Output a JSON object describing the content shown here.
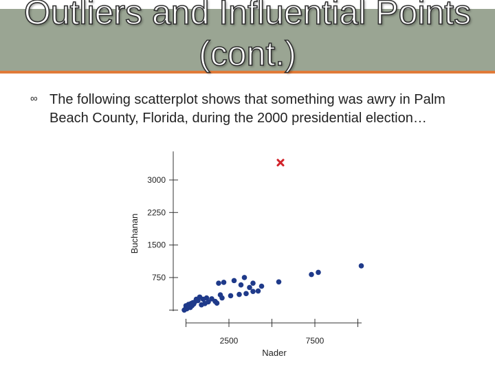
{
  "slide": {
    "title": "Outliers and Influential Points (cont.)",
    "bullet_icon": "swirl-bullet-icon",
    "bullet_text": "The following scatterplot shows that something was awry in Palm Beach County, Florida, during the 2000 presidential election…"
  },
  "colors": {
    "title_band": "#9aa593",
    "title_underline": "#e07b39",
    "points": "#1f3a8a",
    "outlier": "#d2232a"
  },
  "chart_data": {
    "type": "scatter",
    "title": "",
    "xlabel": "Nader",
    "ylabel": "Buchanan",
    "xlim": [
      -100,
      9900
    ],
    "ylim": [
      -200,
      3500
    ],
    "x_ticks": [
      2500,
      7500
    ],
    "y_ticks": [
      750,
      1500,
      2250,
      3000
    ],
    "grid": false,
    "series": [
      {
        "marker": "circle",
        "points": [
          [
            -100,
            0
          ],
          [
            0,
            50
          ],
          [
            100,
            80
          ],
          [
            200,
            120
          ],
          [
            300,
            150
          ],
          [
            400,
            170
          ],
          [
            500,
            180
          ],
          [
            700,
            220
          ],
          [
            0,
            100
          ],
          [
            150,
            130
          ],
          [
            50,
            30
          ],
          [
            250,
            60
          ],
          [
            350,
            100
          ],
          [
            450,
            140
          ],
          [
            600,
            250
          ],
          [
            800,
            300
          ],
          [
            1000,
            250
          ],
          [
            1200,
            280
          ],
          [
            900,
            120
          ],
          [
            1100,
            150
          ],
          [
            1300,
            190
          ],
          [
            1500,
            260
          ],
          [
            1700,
            200
          ],
          [
            1800,
            160
          ],
          [
            2100,
            280
          ],
          [
            2600,
            330
          ],
          [
            1900,
            620
          ],
          [
            2200,
            640
          ],
          [
            2000,
            350
          ],
          [
            3100,
            360
          ],
          [
            3500,
            380
          ],
          [
            3900,
            430
          ],
          [
            4400,
            550
          ],
          [
            3200,
            580
          ],
          [
            3700,
            520
          ],
          [
            4200,
            440
          ],
          [
            2800,
            680
          ],
          [
            3400,
            750
          ],
          [
            3900,
            620
          ],
          [
            5400,
            650
          ],
          [
            7300,
            820
          ],
          [
            7700,
            870
          ],
          [
            10200,
            1020
          ]
        ]
      },
      {
        "marker": "cross",
        "points": [
          [
            5500,
            3400
          ]
        ]
      }
    ]
  }
}
